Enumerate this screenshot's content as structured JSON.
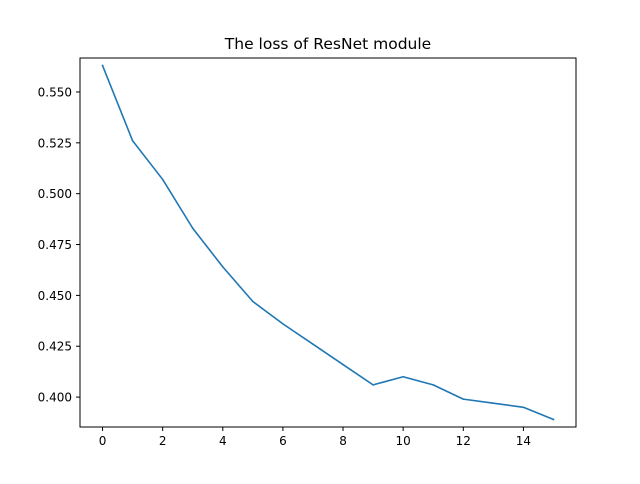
{
  "chart_data": {
    "type": "line",
    "title": "The loss of ResNet module",
    "xlabel": "",
    "ylabel": "",
    "x": [
      0,
      1,
      2,
      3,
      4,
      5,
      6,
      7,
      8,
      9,
      10,
      11,
      12,
      13,
      14,
      15
    ],
    "series": [
      {
        "values": [
          0.563,
          0.526,
          0.507,
          0.483,
          0.464,
          0.447,
          0.436,
          0.426,
          0.416,
          0.406,
          0.41,
          0.406,
          0.399,
          0.397,
          0.395,
          0.389
        ],
        "color": "#1f77b4"
      }
    ],
    "xlim": [
      -0.75,
      15.75
    ],
    "ylim": [
      0.3853,
      0.5667
    ],
    "xticks": [
      0,
      2,
      4,
      6,
      8,
      10,
      12,
      14
    ],
    "xtick_labels": [
      "0",
      "2",
      "4",
      "6",
      "8",
      "10",
      "12",
      "14"
    ],
    "yticks": [
      0.4,
      0.425,
      0.45,
      0.475,
      0.5,
      0.525,
      0.55
    ],
    "ytick_labels": [
      "0.400",
      "0.425",
      "0.450",
      "0.475",
      "0.500",
      "0.525",
      "0.550"
    ],
    "grid": false,
    "legend": false
  }
}
